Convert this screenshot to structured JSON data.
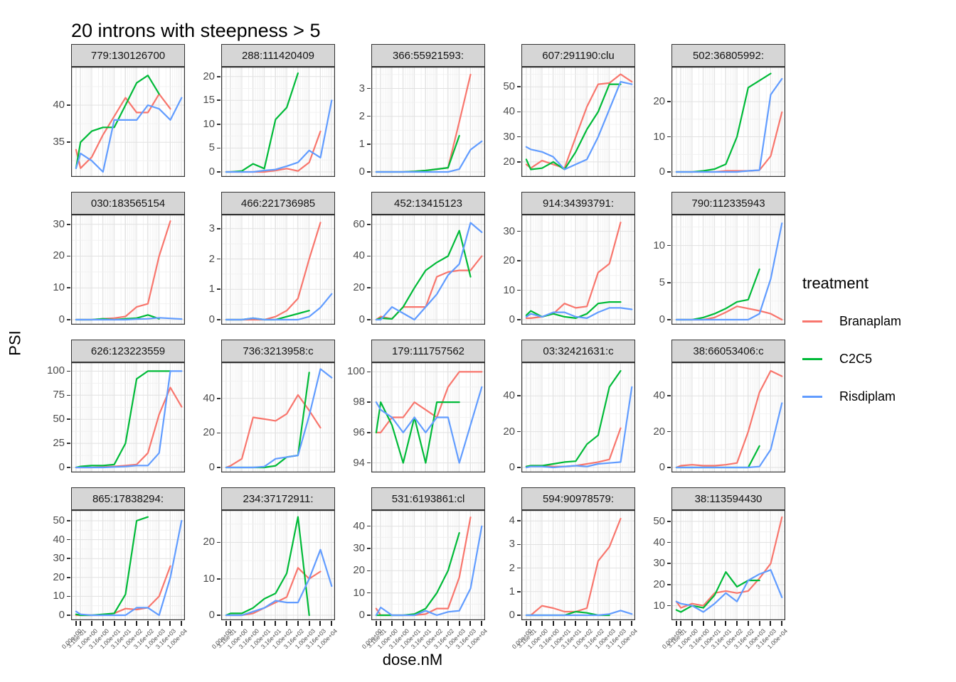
{
  "title": "20 introns with steepness > 5",
  "axis": {
    "x_label": "dose.nM",
    "y_label": "PSI"
  },
  "legend": {
    "title": "treatment",
    "items": [
      {
        "label": "Branaplam",
        "color": "#F8766D"
      },
      {
        "label": "C2C5",
        "color": "#00BA38"
      },
      {
        "label": "Risdiplam",
        "color": "#619CFF"
      }
    ]
  },
  "chart_data": {
    "type": "line",
    "x_scale": "pseudo-log10",
    "x_doses": [
      0,
      0.316,
      1,
      3.16,
      10,
      31.6,
      100,
      316,
      1000,
      3160,
      10000
    ],
    "x_tick_labels": [
      "0.00e+00",
      "3.16e-01",
      "1.00e+00",
      "3.16e+00",
      "1.00e+01",
      "3.16e+01",
      "1.00e+02",
      "3.16e+02",
      "1.00e+03",
      "3.16e+03",
      "1.00e+04"
    ],
    "series_names": [
      "Branaplam",
      "C2C5",
      "Risdiplam"
    ],
    "colors": {
      "Branaplam": "#F8766D",
      "C2C5": "#00BA38",
      "Risdiplam": "#619CFF"
    },
    "facets": [
      {
        "label": "779:130126700",
        "yticks": [
          35,
          40
        ],
        "ylim": [
          31,
          44.5
        ],
        "series": {
          "Branaplam": [
            34,
            31.5,
            33,
            36,
            38.5,
            41,
            39,
            39,
            41.5,
            39.5,
            null
          ],
          "C2C5": [
            31.5,
            35,
            36.5,
            37,
            37,
            40,
            43,
            44,
            41.5,
            null,
            null
          ],
          "Risdiplam": [
            31.5,
            33.5,
            32.5,
            31,
            38,
            38,
            38,
            40,
            39.5,
            38,
            41
          ]
        }
      },
      {
        "label": "288:111420409",
        "yticks": [
          0,
          5,
          10,
          15,
          20
        ],
        "ylim": [
          0,
          21
        ],
        "series": {
          "Branaplam": [
            0,
            0,
            0,
            0,
            0,
            0.3,
            0.7,
            0.2,
            2,
            8.5,
            null
          ],
          "C2C5": [
            0,
            0,
            0.2,
            1.7,
            0.7,
            11,
            13.5,
            20.7,
            null,
            null,
            null
          ],
          "Risdiplam": [
            0,
            0,
            0,
            0,
            0.3,
            0.5,
            1.2,
            2,
            4.5,
            3,
            15
          ]
        }
      },
      {
        "label": "366:55921593:",
        "yticks": [
          0,
          1,
          2,
          3
        ],
        "ylim": [
          0,
          3.6
        ],
        "series": {
          "Branaplam": [
            0,
            0,
            0,
            0,
            0.02,
            0.05,
            0.1,
            0.15,
            1.8,
            3.5,
            null
          ],
          "C2C5": [
            0,
            0,
            0,
            0,
            0.02,
            0.05,
            0.1,
            0.15,
            1.3,
            null,
            null
          ],
          "Risdiplam": [
            0,
            0,
            0,
            0,
            0,
            0,
            0,
            0,
            0.1,
            0.8,
            1.1
          ]
        }
      },
      {
        "label": "607:291190:clu",
        "yticks": [
          20,
          30,
          40,
          50
        ],
        "ylim": [
          16,
          56
        ],
        "series": {
          "Branaplam": [
            19,
            17.5,
            20.5,
            19,
            17.5,
            30,
            42,
            51,
            51.5,
            55,
            52
          ],
          "C2C5": [
            21,
            17,
            17.5,
            20,
            17,
            24,
            33,
            40,
            51,
            51,
            null
          ],
          "Risdiplam": [
            26,
            25,
            24,
            22,
            17,
            19,
            21,
            30,
            41,
            52,
            51
          ]
        }
      },
      {
        "label": "502:36805992:",
        "yticks": [
          0,
          10,
          20
        ],
        "ylim": [
          0,
          28.5
        ],
        "series": {
          "Branaplam": [
            0,
            0,
            0,
            0,
            0,
            0.3,
            0.3,
            0.3,
            0.5,
            4.5,
            17
          ],
          "C2C5": [
            0,
            0,
            0,
            0.3,
            0.8,
            2.2,
            10,
            24,
            26,
            28,
            null
          ],
          "Risdiplam": [
            0,
            0,
            0,
            0,
            0,
            0,
            0,
            0.3,
            0.5,
            22,
            26.5
          ]
        }
      },
      {
        "label": "030:183565154",
        "yticks": [
          0,
          10,
          20,
          30
        ],
        "ylim": [
          0,
          31.5
        ],
        "series": {
          "Branaplam": [
            0,
            0,
            0,
            0.3,
            0.5,
            1,
            4,
            5,
            20,
            31,
            null
          ],
          "C2C5": [
            0,
            0,
            0,
            0.3,
            0,
            0.3,
            0.5,
            1.5,
            0.3,
            null,
            null
          ],
          "Risdiplam": [
            0,
            0,
            0,
            0,
            0,
            0,
            0.2,
            0.3,
            0.6,
            0.4,
            0.2
          ]
        }
      },
      {
        "label": "466:221736985",
        "yticks": [
          0,
          1,
          2,
          3
        ],
        "ylim": [
          0,
          3.3
        ],
        "series": {
          "Branaplam": [
            0,
            0,
            0,
            0,
            0,
            0.1,
            0.3,
            0.7,
            2,
            3.2,
            null
          ],
          "C2C5": [
            0,
            0,
            0,
            0.05,
            0,
            0,
            0.1,
            0.2,
            0.3,
            null,
            null
          ],
          "Risdiplam": [
            0,
            0,
            0,
            0.05,
            0,
            0,
            0,
            0,
            0.1,
            0.4,
            0.85
          ]
        }
      },
      {
        "label": "452:13415123",
        "yticks": [
          0,
          20,
          40,
          60
        ],
        "ylim": [
          0,
          63
        ],
        "series": {
          "Branaplam": [
            0,
            2,
            0.5,
            8,
            8,
            8,
            27,
            30,
            31,
            31,
            40
          ],
          "C2C5": [
            0,
            1,
            0.5,
            8,
            20,
            31,
            36,
            40,
            56,
            27,
            null
          ],
          "Risdiplam": [
            0,
            0,
            8,
            4,
            0,
            8,
            16,
            28,
            35,
            61,
            55
          ]
        }
      },
      {
        "label": "914:34393791:",
        "yticks": [
          0,
          10,
          20,
          30
        ],
        "ylim": [
          0,
          34
        ],
        "series": {
          "Branaplam": [
            0.5,
            0.5,
            1,
            2,
            5.5,
            4,
            4.5,
            16,
            19,
            33,
            null
          ],
          "C2C5": [
            1.5,
            3,
            1,
            2,
            1,
            0.5,
            2,
            5.5,
            6,
            6,
            null
          ],
          "Risdiplam": [
            1,
            2,
            1,
            2.5,
            2.5,
            1,
            0.5,
            2.5,
            4,
            4,
            3.5
          ]
        }
      },
      {
        "label": "790:112335943",
        "yticks": [
          0,
          5,
          10
        ],
        "ylim": [
          0,
          13.5
        ],
        "series": {
          "Branaplam": [
            0,
            0,
            0,
            0,
            0.3,
            1,
            1.8,
            1.5,
            1.2,
            0.8,
            0
          ],
          "C2C5": [
            0,
            0,
            0,
            0.3,
            0.8,
            1.5,
            2.4,
            2.7,
            6.8,
            null,
            null
          ],
          "Risdiplam": [
            0,
            0,
            0,
            0,
            0,
            0,
            0,
            0,
            0.8,
            5.5,
            13
          ]
        }
      },
      {
        "label": "626:123223559",
        "yticks": [
          0,
          25,
          50,
          75,
          100
        ],
        "ylim": [
          0,
          104
        ],
        "series": {
          "Branaplam": [
            0,
            0,
            0,
            0.5,
            1,
            2,
            3,
            15,
            55,
            83,
            63
          ],
          "C2C5": [
            0,
            1,
            2,
            2,
            3,
            25,
            92,
            100,
            100,
            100,
            null
          ],
          "Risdiplam": [
            0,
            0,
            0,
            0,
            0.5,
            1,
            2,
            2,
            15,
            100,
            100
          ]
        }
      },
      {
        "label": "736:3213958:c",
        "yticks": [
          0,
          20,
          40
        ],
        "ylim": [
          0,
          58
        ],
        "series": {
          "Branaplam": [
            0,
            1,
            5,
            29,
            28,
            27,
            31,
            42,
            33,
            23,
            null
          ],
          "C2C5": [
            0,
            0,
            0,
            0,
            0,
            1,
            6,
            7,
            55,
            null,
            null
          ],
          "Risdiplam": [
            0,
            0,
            0,
            0,
            0.5,
            5,
            6,
            7,
            30,
            57,
            52
          ]
        }
      },
      {
        "label": "179:111757562",
        "yticks": [
          94,
          96,
          98,
          100
        ],
        "ylim": [
          93.7,
          100.3
        ],
        "series": {
          "Branaplam": [
            96,
            96,
            97,
            97,
            98,
            97.5,
            97,
            99,
            100,
            100,
            100
          ],
          "C2C5": [
            96,
            98,
            96.5,
            94,
            97,
            94,
            98,
            98,
            98,
            null,
            null
          ],
          "Risdiplam": [
            98,
            97.5,
            97,
            96,
            97,
            96,
            97,
            97,
            94,
            96.5,
            99
          ]
        }
      },
      {
        "label": "03:32421631:c",
        "yticks": [
          0,
          20,
          40
        ],
        "ylim": [
          0,
          56
        ],
        "series": {
          "Branaplam": [
            0.5,
            1,
            1,
            0.5,
            0.5,
            1,
            2,
            3,
            4.5,
            22,
            null
          ],
          "C2C5": [
            0.5,
            1,
            1,
            2,
            3,
            3.5,
            13,
            18,
            45,
            54,
            null
          ],
          "Risdiplam": [
            0,
            0.5,
            0.5,
            0,
            0.5,
            1,
            0.5,
            2,
            2.5,
            3,
            45
          ]
        }
      },
      {
        "label": "38:66053406:c",
        "yticks": [
          0,
          20,
          40
        ],
        "ylim": [
          0,
          56
        ],
        "series": {
          "Branaplam": [
            0,
            1,
            1.5,
            1,
            1,
            1.5,
            2.5,
            20,
            42,
            54,
            51
          ],
          "C2C5": [
            0,
            0,
            0,
            0,
            0,
            0,
            0,
            0,
            12,
            null,
            null
          ],
          "Risdiplam": [
            0,
            0,
            0,
            0,
            0,
            0,
            0,
            0,
            0.5,
            10,
            36
          ]
        }
      },
      {
        "label": "865:17838294:",
        "yticks": [
          0,
          10,
          20,
          30,
          40,
          50
        ],
        "ylim": [
          0,
          53
        ],
        "series": {
          "Branaplam": [
            0,
            0,
            0,
            0,
            1,
            3.5,
            3,
            4,
            10,
            26,
            null
          ],
          "C2C5": [
            0.5,
            0,
            0,
            0.5,
            1,
            11,
            50,
            52,
            null,
            null,
            null
          ],
          "Risdiplam": [
            2,
            0.5,
            0,
            0,
            0,
            0,
            4,
            4,
            0,
            20,
            50
          ]
        }
      },
      {
        "label": "234:37172911:",
        "yticks": [
          0,
          10,
          20
        ],
        "ylim": [
          0,
          27.5
        ],
        "series": {
          "Branaplam": [
            0,
            0,
            0,
            0.5,
            2,
            3.5,
            5,
            13,
            10,
            12,
            null
          ],
          "C2C5": [
            0,
            0.5,
            0.5,
            2,
            4.5,
            6,
            11.5,
            27,
            0,
            null,
            null
          ],
          "Risdiplam": [
            0,
            0,
            0,
            1,
            2,
            4,
            3.5,
            3.5,
            10,
            18,
            8
          ]
        }
      },
      {
        "label": "531:6193861:cl",
        "yticks": [
          0,
          10,
          20,
          30,
          40
        ],
        "ylim": [
          0,
          45
        ],
        "series": {
          "Branaplam": [
            3,
            0,
            0,
            0,
            0,
            0.5,
            3,
            3,
            17,
            44,
            null
          ],
          "C2C5": [
            0,
            0,
            0,
            0,
            0.5,
            3,
            10,
            20,
            37,
            null,
            null
          ],
          "Risdiplam": [
            0,
            3.5,
            0,
            0,
            0,
            2,
            0,
            1.5,
            2,
            12,
            40
          ]
        }
      },
      {
        "label": "594:90978579:",
        "yticks": [
          0,
          1,
          2,
          3,
          4
        ],
        "ylim": [
          0,
          4.25
        ],
        "series": {
          "Branaplam": [
            0,
            0,
            0.4,
            0.3,
            0.15,
            0.15,
            0.3,
            2.3,
            2.9,
            4.1,
            null
          ],
          "C2C5": [
            0,
            0,
            0,
            0,
            0,
            0.15,
            0.1,
            0,
            0,
            null,
            null
          ],
          "Risdiplam": [
            0,
            0,
            0,
            0,
            0,
            0,
            0,
            0,
            0.05,
            0.2,
            0.05
          ]
        }
      },
      {
        "label": "38:113594430",
        "yticks": [
          10,
          20,
          30,
          40,
          50
        ],
        "ylim": [
          5.5,
          53
        ],
        "series": {
          "Branaplam": [
            12,
            9,
            11,
            10,
            16,
            17,
            16,
            17,
            23,
            30,
            52
          ],
          "C2C5": [
            8,
            7,
            10,
            9,
            15,
            26,
            19,
            22,
            22,
            null,
            null
          ],
          "Risdiplam": [
            12,
            11,
            10,
            7,
            11,
            16,
            12,
            22,
            25,
            27,
            14
          ]
        }
      }
    ]
  }
}
